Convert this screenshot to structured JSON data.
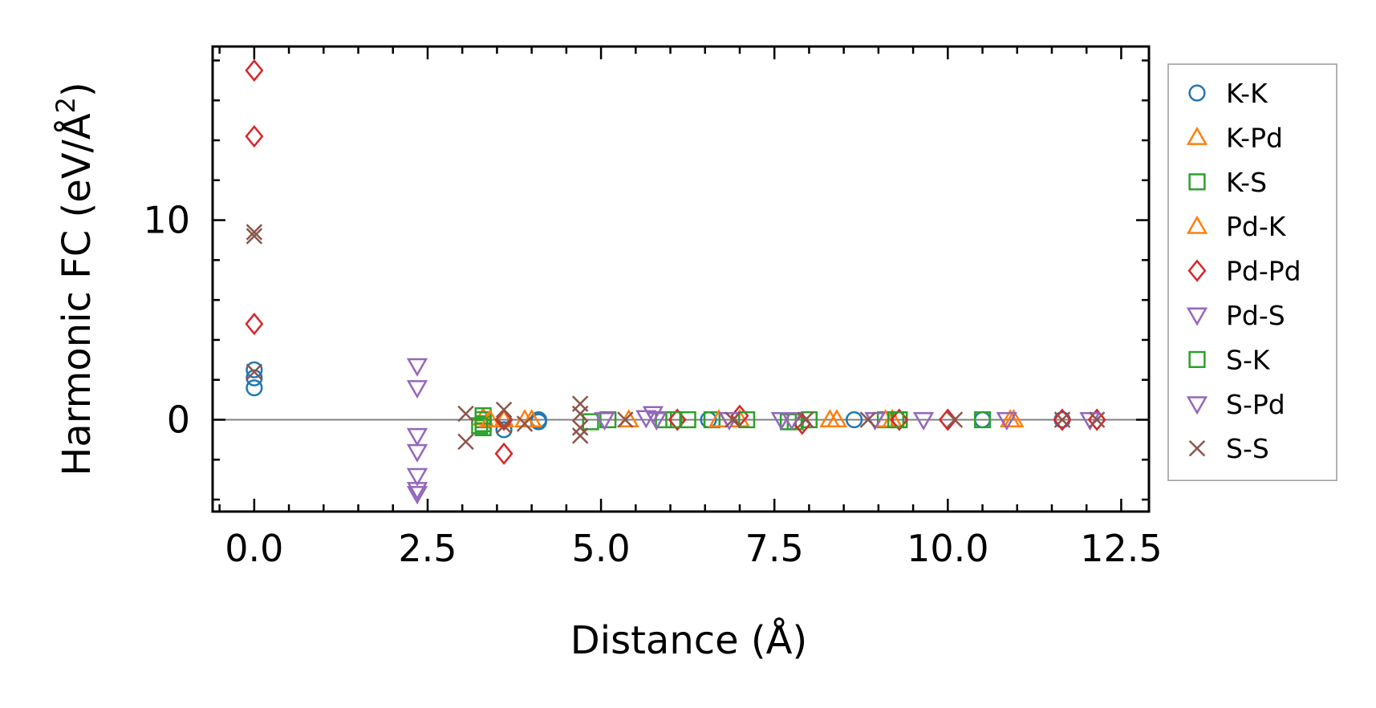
{
  "chart_data": {
    "type": "scatter",
    "title": "",
    "xlabel": "Distance (Å)",
    "ylabel": "Harmonic FC (eV/Å",
    "ylabel_superscript": "2",
    "ylabel_close": ")",
    "xlim": [
      -0.6,
      12.9
    ],
    "ylim": [
      -4.6,
      18.7
    ],
    "xticks": [
      0.0,
      2.5,
      5.0,
      7.5,
      10.0,
      12.5
    ],
    "xtick_labels": [
      "0.0",
      "2.5",
      "5.0",
      "7.5",
      "10.0",
      "12.5"
    ],
    "yticks": [
      0,
      10
    ],
    "ytick_labels": [
      "0",
      "10"
    ],
    "zero_line": true,
    "legend_position": "outside-right",
    "series": [
      {
        "name": "K-K",
        "marker": "circle",
        "color": "#1f77b4",
        "filled": false,
        "points": [
          [
            0,
            2.5
          ],
          [
            0,
            2.1
          ],
          [
            0,
            1.6
          ],
          [
            3.6,
            -0.5
          ],
          [
            4.1,
            0
          ],
          [
            4.1,
            -0.1
          ],
          [
            6.55,
            0
          ],
          [
            8.65,
            0
          ],
          [
            10.5,
            0
          ],
          [
            11.65,
            0
          ]
        ]
      },
      {
        "name": "K-Pd",
        "marker": "triangle-up",
        "color": "#ff7f0e",
        "filled": false,
        "points": [
          [
            3.3,
            0.1
          ],
          [
            3.6,
            0.0
          ],
          [
            4.0,
            0.0
          ],
          [
            5.4,
            0
          ],
          [
            7.0,
            0
          ],
          [
            8.4,
            0
          ],
          [
            9.2,
            0
          ],
          [
            10.95,
            0
          ]
        ]
      },
      {
        "name": "K-S",
        "marker": "square",
        "color": "#2ca02c",
        "filled": false,
        "points": [
          [
            3.3,
            0.2
          ],
          [
            3.3,
            0.0
          ],
          [
            3.3,
            -0.2
          ],
          [
            3.3,
            -0.4
          ],
          [
            4.85,
            -0.1
          ],
          [
            5.9,
            0
          ],
          [
            6.25,
            0
          ],
          [
            6.6,
            0
          ],
          [
            7.7,
            -0.1
          ],
          [
            7.8,
            -0.1
          ],
          [
            8.0,
            0
          ],
          [
            9.1,
            0
          ],
          [
            9.3,
            0
          ],
          [
            10.5,
            0
          ]
        ]
      },
      {
        "name": "Pd-K",
        "marker": "triangle-up",
        "color": "#ff7f0e",
        "filled": false,
        "points": [
          [
            3.4,
            0.0
          ],
          [
            3.9,
            0.0
          ],
          [
            6.7,
            0
          ],
          [
            8.3,
            0
          ],
          [
            9.1,
            0
          ],
          [
            10.9,
            0
          ]
        ]
      },
      {
        "name": "Pd-Pd",
        "marker": "diamond",
        "color": "#d62728",
        "filled": false,
        "points": [
          [
            0,
            17.5
          ],
          [
            0,
            14.2
          ],
          [
            0,
            4.8
          ],
          [
            3.6,
            -1.7
          ],
          [
            3.6,
            0.0
          ],
          [
            6.1,
            0
          ],
          [
            7.0,
            0.2
          ],
          [
            7.9,
            -0.2
          ],
          [
            9.3,
            0
          ],
          [
            10.0,
            0
          ],
          [
            11.65,
            0
          ],
          [
            12.15,
            0
          ]
        ]
      },
      {
        "name": "Pd-S",
        "marker": "triangle-down",
        "color": "#9467bd",
        "filled": false,
        "points": [
          [
            2.35,
            2.7
          ],
          [
            2.35,
            1.6
          ],
          [
            2.35,
            -0.8
          ],
          [
            2.35,
            -1.6
          ],
          [
            2.35,
            -2.8
          ],
          [
            2.35,
            -3.5
          ],
          [
            2.35,
            -3.7
          ],
          [
            5.75,
            0.3
          ],
          [
            7.6,
            0
          ],
          [
            8.95,
            0
          ]
        ]
      },
      {
        "name": "S-K",
        "marker": "square",
        "color": "#2ca02c",
        "filled": false,
        "points": [
          [
            3.25,
            -0.3
          ],
          [
            5.1,
            0
          ],
          [
            6.05,
            0
          ],
          [
            7.1,
            0
          ],
          [
            9.25,
            0
          ]
        ]
      },
      {
        "name": "S-Pd",
        "marker": "triangle-down",
        "color": "#9467bd",
        "filled": false,
        "points": [
          [
            5.05,
            0
          ],
          [
            5.65,
            0.1
          ],
          [
            5.8,
            0
          ],
          [
            6.85,
            0
          ],
          [
            7.75,
            0
          ],
          [
            9.65,
            0
          ],
          [
            10.85,
            0
          ],
          [
            12.05,
            0
          ]
        ]
      },
      {
        "name": "S-S",
        "marker": "x",
        "color": "#8c564b",
        "filled": false,
        "points": [
          [
            0,
            9.4
          ],
          [
            0,
            9.2
          ],
          [
            0,
            2.4
          ],
          [
            3.05,
            0.3
          ],
          [
            3.05,
            -1.1
          ],
          [
            3.6,
            0.5
          ],
          [
            3.6,
            -0.3
          ],
          [
            3.9,
            -0.2
          ],
          [
            4.7,
            0.8
          ],
          [
            4.7,
            0.3
          ],
          [
            4.7,
            -0.4
          ],
          [
            4.7,
            -0.8
          ],
          [
            5.35,
            0
          ],
          [
            6.9,
            0
          ],
          [
            7.95,
            0
          ],
          [
            8.85,
            0
          ],
          [
            10.1,
            0
          ],
          [
            11.65,
            0
          ],
          [
            12.15,
            0
          ]
        ]
      }
    ]
  }
}
